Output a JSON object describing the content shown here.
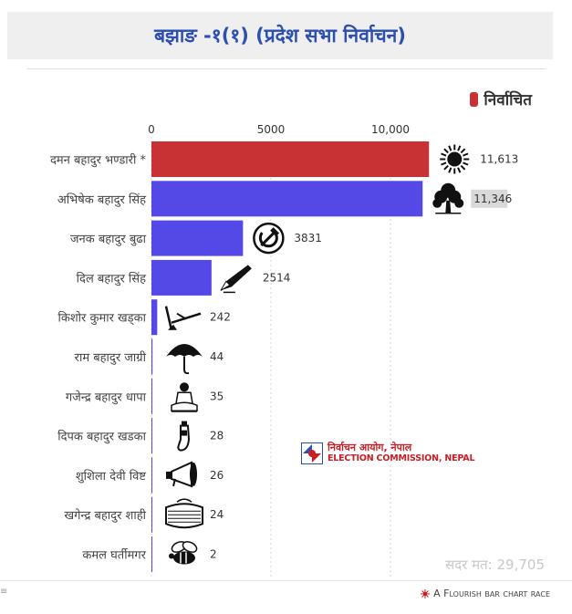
{
  "title": "बझाङ -१(१) (प्रदेश सभा निर्वाचन)",
  "legend": {
    "label": "निर्वाचित",
    "color": "#c93234"
  },
  "chart_data": {
    "type": "bar",
    "orientation": "horizontal",
    "title": "बझाङ -१(१) (प्रदेश सभा निर्वाचन)",
    "xlim": [
      0,
      15000
    ],
    "x_ticks": [
      0,
      5000,
      10000
    ],
    "x_tick_labels": [
      "0",
      "5000",
      "10,000"
    ],
    "grid": "vertical dashed",
    "legend_position": "top-right",
    "colors": {
      "elected": "#c93234",
      "other": "#5448e6"
    },
    "categories": [
      "दमन बहादुर भण्डारी *",
      "अभिषेक बहादुर सिंह",
      "जनक बहादुर बुढा",
      "दिल बहादुर सिंह",
      "किशोर कुमार खड्का",
      "राम बहादुर जाग्री",
      "गजेन्द्र बहादुर धापा",
      "दिपक बहादुर खडका",
      "शुशिला देवी विष्ट",
      "खगेन्द्र बहादुर शाही",
      "कमल घर्तीमगर"
    ],
    "values": [
      11613,
      11346,
      3831,
      2514,
      242,
      44,
      35,
      28,
      26,
      24,
      2
    ],
    "value_labels": [
      "11,613",
      "11,346",
      "3831",
      "2514",
      "242",
      "44",
      "35",
      "28",
      "26",
      "24",
      "2"
    ],
    "elected": [
      true,
      false,
      false,
      false,
      false,
      false,
      false,
      false,
      false,
      false,
      false
    ],
    "symbols": [
      "sun-icon",
      "tree-icon",
      "hammer-sickle-icon",
      "pen-icon",
      "plough-icon",
      "umbrella-icon",
      "seated-person-icon",
      "bottle-icon",
      "megaphone-icon",
      "drum-icon",
      "bee-icon"
    ]
  },
  "watermark": {
    "nepali": "निर्वाचन आयोग, नेपाल",
    "english": "ELECTION COMMISSION, NEPAL"
  },
  "total_votes": "सदर मत: 29,705",
  "footer": {
    "left": "≡",
    "credit": "A Flourish bar chart race"
  }
}
